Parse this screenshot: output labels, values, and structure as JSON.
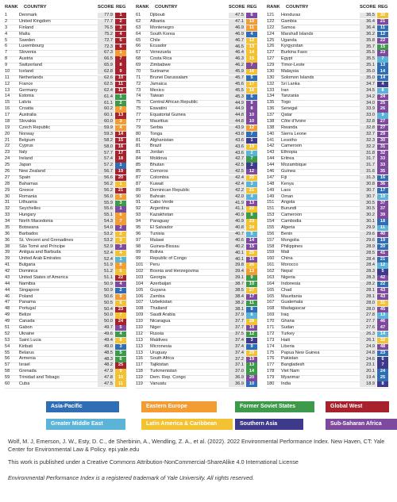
{
  "header": {
    "rank": "RANK",
    "country": "COUNTRY",
    "score": "SCORE",
    "reg": "REG"
  },
  "rows": [
    [
      1,
      "Denmark",
      "77.9",
      1,
      "#a8222e"
    ],
    [
      2,
      "United Kingdom",
      "77.7",
      2,
      "#a8222e"
    ],
    [
      3,
      "Finland",
      "76.5",
      3,
      "#a8222e"
    ],
    [
      4,
      "Malta",
      "75.2",
      4,
      "#a8222e"
    ],
    [
      5,
      "Sweden",
      "72.7",
      5,
      "#a8222e"
    ],
    [
      6,
      "Luxembourg",
      "72.3",
      6,
      "#a8222e"
    ],
    [
      7,
      "Slovenia",
      "67.3",
      1,
      "#f39c34"
    ],
    [
      8,
      "Austria",
      "66.5",
      7,
      "#a8222e"
    ],
    [
      9,
      "Switzerland",
      "65.9",
      8,
      "#a8222e"
    ],
    [
      10,
      "Iceland",
      "62.8",
      9,
      "#a8222e"
    ],
    [
      11,
      "Netherlands",
      "62.6",
      10,
      "#a8222e"
    ],
    [
      12,
      "France",
      "62.5",
      11,
      "#a8222e"
    ],
    [
      13,
      "Germany",
      "62.4",
      12,
      "#a8222e"
    ],
    [
      14,
      "Estonia",
      "61.4",
      1,
      "#3d9a4a"
    ],
    [
      15,
      "Latvia",
      "61.1",
      2,
      "#3d9a4a"
    ],
    [
      16,
      "Croatia",
      "60.2",
      2,
      "#f39c34"
    ],
    [
      17,
      "Australia",
      "60.1",
      13,
      "#a8222e"
    ],
    [
      18,
      "Slovakia",
      "60.0",
      3,
      "#f39c34"
    ],
    [
      19,
      "Czech Republic",
      "59.9",
      4,
      "#f39c34"
    ],
    [
      20,
      "Norway",
      "59.3",
      14,
      "#a8222e"
    ],
    [
      21,
      "Belgium",
      "58.2",
      15,
      "#a8222e"
    ],
    [
      22,
      "Cyprus",
      "58.0",
      16,
      "#a8222e"
    ],
    [
      23,
      "Italy",
      "57.7",
      17,
      "#a8222e"
    ],
    [
      24,
      "Ireland",
      "57.4",
      18,
      "#a8222e"
    ],
    [
      25,
      "Japan",
      "57.2",
      1,
      "#2f6eb5"
    ],
    [
      26,
      "New Zealand",
      "56.7",
      19,
      "#a8222e"
    ],
    [
      27,
      "Spain",
      "56.6",
      20,
      "#a8222e"
    ],
    [
      28,
      "Bahamas",
      "56.2",
      1,
      "#f2c232"
    ],
    [
      29,
      "Greece",
      "56.2",
      21,
      "#a8222e"
    ],
    [
      30,
      "Romania",
      "56.0",
      5,
      "#f39c34"
    ],
    [
      31,
      "Lithuania",
      "55.9",
      3,
      "#3d9a4a"
    ],
    [
      32,
      "Seychelles",
      "55.6",
      1,
      "#7e4a9e"
    ],
    [
      33,
      "Hungary",
      "55.1",
      6,
      "#f39c34"
    ],
    [
      34,
      "North Macedonia",
      "54.3",
      7,
      "#f39c34"
    ],
    [
      35,
      "Botswana",
      "54.0",
      2,
      "#7e4a9e"
    ],
    [
      36,
      "Barbados",
      "53.2",
      2,
      "#f2c232"
    ],
    [
      36,
      "St. Vincent and Grenadines",
      "53.2",
      3,
      "#f2c232"
    ],
    [
      38,
      "São Tomé and Príncipe",
      "52.9",
      3,
      "#7e4a9e"
    ],
    [
      39,
      "Antigua and Barbuda",
      "52.4",
      4,
      "#f2c232"
    ],
    [
      39,
      "United Arab Emirates",
      "52.4",
      1,
      "#5bb4d8"
    ],
    [
      41,
      "Bulgaria",
      "51.9",
      8,
      "#f39c34"
    ],
    [
      42,
      "Dominica",
      "51.2",
      5,
      "#f2c232"
    ],
    [
      43,
      "United States of America",
      "51.1",
      22,
      "#a8222e"
    ],
    [
      44,
      "Namibia",
      "50.9",
      4,
      "#7e4a9e"
    ],
    [
      44,
      "Singapore",
      "50.9",
      2,
      "#2f6eb5"
    ],
    [
      46,
      "Poland",
      "50.6",
      9,
      "#f39c34"
    ],
    [
      47,
      "Panama",
      "50.5",
      6,
      "#f2c232"
    ],
    [
      48,
      "Portugal",
      "50.4",
      23,
      "#a8222e"
    ],
    [
      49,
      "Belize",
      "50.0",
      7,
      "#f2c232"
    ],
    [
      49,
      "Canada",
      "50.0",
      24,
      "#a8222e"
    ],
    [
      51,
      "Gabon",
      "49.7",
      5,
      "#7e4a9e"
    ],
    [
      52,
      "Ukraine",
      "49.6",
      4,
      "#3d9a4a"
    ],
    [
      53,
      "Saint Lucia",
      "49.4",
      8,
      "#f2c232"
    ],
    [
      54,
      "Kiribati",
      "49.0",
      3,
      "#2f6eb5"
    ],
    [
      55,
      "Belarus",
      "48.5",
      5,
      "#3d9a4a"
    ],
    [
      56,
      "Armenia",
      "48.3",
      6,
      "#3d9a4a"
    ],
    [
      57,
      "Israel",
      "48.2",
      25,
      "#a8222e"
    ],
    [
      58,
      "Grenada",
      "47.9",
      9,
      "#f2c232"
    ],
    [
      59,
      "Trinidad and Tobago",
      "47.8",
      10,
      "#f2c232"
    ],
    [
      60,
      "Cuba",
      "47.5",
      11,
      "#f2c232"
    ],
    [
      61,
      "Djibouti",
      "47.5",
      6,
      "#7e4a9e"
    ],
    [
      62,
      "Albania",
      "47.1",
      10,
      "#f39c34"
    ],
    [
      63,
      "Montenegro",
      "46.9",
      11,
      "#f39c34"
    ],
    [
      64,
      "South Korea",
      "46.9",
      4,
      "#2f6eb5"
    ],
    [
      65,
      "Chile",
      "46.7",
      12,
      "#f2c232"
    ],
    [
      66,
      "Ecuador",
      "46.5",
      13,
      "#f2c232"
    ],
    [
      67,
      "Venezuela",
      "46.4",
      14,
      "#f2c232"
    ],
    [
      68,
      "Costa Rica",
      "46.3",
      15,
      "#f2c232"
    ],
    [
      69,
      "Zimbabwe",
      "46.2",
      7,
      "#7e4a9e"
    ],
    [
      70,
      "Suriname",
      "45.9",
      16,
      "#f2c232"
    ],
    [
      71,
      "Brunei Darussalam",
      "45.7",
      5,
      "#2f6eb5"
    ],
    [
      72,
      "Jamaica",
      "45.6",
      17,
      "#f2c232"
    ],
    [
      73,
      "Mexico",
      "45.5",
      18,
      "#f2c232"
    ],
    [
      74,
      "Taiwan",
      "45.3",
      6,
      "#2f6eb5"
    ],
    [
      75,
      "Central African Republic",
      "44.9",
      8,
      "#7e4a9e"
    ],
    [
      75,
      "Eswatini",
      "44.9",
      8,
      "#7e4a9e"
    ],
    [
      77,
      "Equatorial Guinea",
      "44.8",
      10,
      "#7e4a9e"
    ],
    [
      77,
      "Mauritius",
      "44.8",
      10,
      "#7e4a9e"
    ],
    [
      79,
      "Serbia",
      "43.9",
      12,
      "#f39c34"
    ],
    [
      80,
      "Tonga",
      "43.8",
      7,
      "#2f6eb5"
    ],
    [
      81,
      "Afghanistan",
      "43.6",
      1,
      "#3d3a8c"
    ],
    [
      81,
      "Brazil",
      "43.6",
      19,
      "#f2c232"
    ],
    [
      81,
      "Jordan",
      "43.6",
      2,
      "#5bb4d8"
    ],
    [
      84,
      "Moldova",
      "42.7",
      7,
      "#3d9a4a"
    ],
    [
      85,
      "Bhutan",
      "42.5",
      2,
      "#3d3a8c"
    ],
    [
      85,
      "Comoros",
      "42.5",
      12,
      "#7e4a9e"
    ],
    [
      87,
      "Colombia",
      "42.4",
      20,
      "#f2c232"
    ],
    [
      87,
      "Kuwait",
      "42.4",
      3,
      "#5bb4d8"
    ],
    [
      89,
      "Dominican Republic",
      "42.2",
      21,
      "#f2c232"
    ],
    [
      90,
      "Bahrain",
      "42.0",
      4,
      "#5bb4d8"
    ],
    [
      91,
      "Cabo Verde",
      "41.9",
      13,
      "#7e4a9e"
    ],
    [
      92,
      "Argentina",
      "41.1",
      22,
      "#f2c232"
    ],
    [
      93,
      "Kazakhstan",
      "40.9",
      8,
      "#3d9a4a"
    ],
    [
      94,
      "Paraguay",
      "40.9",
      23,
      "#f2c232"
    ],
    [
      95,
      "El Salvador",
      "40.8",
      24,
      "#f2c232"
    ],
    [
      96,
      "Tunisia",
      "40.7",
      5,
      "#5bb4d8"
    ],
    [
      97,
      "Malawi",
      "40.6",
      14,
      "#7e4a9e"
    ],
    [
      98,
      "Guinea-Bissau",
      "40.2",
      15,
      "#7e4a9e"
    ],
    [
      99,
      "Bolivia",
      "40.1",
      25,
      "#f2c232"
    ],
    [
      99,
      "Republic of Congo",
      "40.1",
      16,
      "#7e4a9e"
    ],
    [
      101,
      "Peru",
      "39.8",
      26,
      "#f2c232"
    ],
    [
      102,
      "Bosnia and Herzegovina",
      "39.4",
      13,
      "#f39c34"
    ],
    [
      103,
      "Georgia",
      "39.1",
      9,
      "#3d9a4a"
    ],
    [
      104,
      "Azerbaijan",
      "38.7",
      10,
      "#3d9a4a"
    ],
    [
      105,
      "Guyana",
      "38.5",
      27,
      "#f2c232"
    ],
    [
      106,
      "Zambia",
      "38.4",
      17,
      "#7e4a9e"
    ],
    [
      107,
      "Uzbekistan",
      "38.2",
      11,
      "#3d9a4a"
    ],
    [
      108,
      "Thailand",
      "38.1",
      8,
      "#2f6eb5"
    ],
    [
      109,
      "Saudi Arabia",
      "37.9",
      6,
      "#5bb4d8"
    ],
    [
      110,
      "Nicaragua",
      "37.7",
      28,
      "#f2c232"
    ],
    [
      110,
      "Niger",
      "37.7",
      18,
      "#7e4a9e"
    ],
    [
      112,
      "Russia",
      "37.5",
      12,
      "#3d9a4a"
    ],
    [
      113,
      "Maldives",
      "37.4",
      3,
      "#3d3a8c"
    ],
    [
      113,
      "Micronesia",
      "37.4",
      9,
      "#2f6eb5"
    ],
    [
      113,
      "Uruguay",
      "37.4",
      29,
      "#f2c232"
    ],
    [
      116,
      "South Africa",
      "37.2",
      19,
      "#7e4a9e"
    ],
    [
      117,
      "Tajikistan",
      "37.1",
      13,
      "#3d9a4a"
    ],
    [
      118,
      "Turkmenistan",
      "37.0",
      14,
      "#3d9a4a"
    ],
    [
      119,
      "Dem. Rep. Congo",
      "36.9",
      20,
      "#7e4a9e"
    ],
    [
      119,
      "Vanuatu",
      "36.9",
      10,
      "#2f6eb5"
    ],
    [
      121,
      "Honduras",
      "36.5",
      30,
      "#f2c232"
    ],
    [
      122,
      "Gambia",
      "36.4",
      21,
      "#7e4a9e"
    ],
    [
      122,
      "Samoa",
      "36.4",
      11,
      "#2f6eb5"
    ],
    [
      124,
      "Marshall Islands",
      "36.2",
      12,
      "#2f6eb5"
    ],
    [
      125,
      "Uganda",
      "35.8",
      22,
      "#7e4a9e"
    ],
    [
      126,
      "Kyrgyzstan",
      "35.7",
      15,
      "#3d9a4a"
    ],
    [
      127,
      "Burkina Faso",
      "35.5",
      23,
      "#7e4a9e"
    ],
    [
      127,
      "Egypt",
      "35.5",
      7,
      "#5bb4d8"
    ],
    [
      129,
      "Timor-Leste",
      "35.1",
      13,
      "#2f6eb5"
    ],
    [
      130,
      "Malaysia",
      "35.0",
      14,
      "#2f6eb5"
    ],
    [
      130,
      "Solomon Islands",
      "35.0",
      14,
      "#2f6eb5"
    ],
    [
      132,
      "Sri Lanka",
      "34.7",
      4,
      "#3d3a8c"
    ],
    [
      133,
      "Iran",
      "34.5",
      8,
      "#5bb4d8"
    ],
    [
      134,
      "Tanzania",
      "34.2",
      24,
      "#7e4a9e"
    ],
    [
      135,
      "Togo",
      "34.0",
      25,
      "#7e4a9e"
    ],
    [
      136,
      "Senegal",
      "33.9",
      26,
      "#7e4a9e"
    ],
    [
      137,
      "Qatar",
      "33.0",
      9,
      "#5bb4d8"
    ],
    [
      138,
      "Côte d'Ivoire",
      "32.8",
      27,
      "#7e4a9e"
    ],
    [
      138,
      "Rwanda",
      "32.8",
      27,
      "#7e4a9e"
    ],
    [
      140,
      "Sierra Leone",
      "32.7",
      29,
      "#7e4a9e"
    ],
    [
      141,
      "Lesotho",
      "32.3",
      30,
      "#7e4a9e"
    ],
    [
      142,
      "Cameroon",
      "32.2",
      31,
      "#7e4a9e"
    ],
    [
      143,
      "Ethiopia",
      "31.8",
      32,
      "#7e4a9e"
    ],
    [
      144,
      "Eritrea",
      "31.7",
      33,
      "#7e4a9e"
    ],
    [
      144,
      "Mozambique",
      "31.7",
      33,
      "#7e4a9e"
    ],
    [
      146,
      "Guinea",
      "31.6",
      35,
      "#7e4a9e"
    ],
    [
      147,
      "Fiji",
      "31.3",
      16,
      "#2f6eb5"
    ],
    [
      148,
      "Kenya",
      "30.8",
      36,
      "#7e4a9e"
    ],
    [
      149,
      "Laos",
      "30.7",
      17,
      "#2f6eb5"
    ],
    [
      149,
      "Oman",
      "30.7",
      10,
      "#5bb4d8"
    ],
    [
      151,
      "Angola",
      "30.5",
      37,
      "#7e4a9e"
    ],
    [
      151,
      "Burundi",
      "30.5",
      37,
      "#7e4a9e"
    ],
    [
      153,
      "Cameroon",
      "30.2",
      39,
      "#7e4a9e"
    ],
    [
      154,
      "Cambodia",
      "30.1",
      18,
      "#2f6eb5"
    ],
    [
      155,
      "Algeria",
      "29.9",
      11,
      "#5bb4d8"
    ],
    [
      156,
      "Benin",
      "29.6",
      40,
      "#7e4a9e"
    ],
    [
      157,
      "Mongolia",
      "29.6",
      19,
      "#2f6eb5"
    ],
    [
      158,
      "Philippines",
      "28.9",
      20,
      "#2f6eb5"
    ],
    [
      159,
      "Mali",
      "28.5",
      41,
      "#7e4a9e"
    ],
    [
      160,
      "China",
      "28.4",
      21,
      "#2f6eb5"
    ],
    [
      161,
      "Morocco",
      "28.4",
      12,
      "#5bb4d8"
    ],
    [
      162,
      "Nepal",
      "28.3",
      5,
      "#3d3a8c"
    ],
    [
      163,
      "Nigeria",
      "28.3",
      42,
      "#7e4a9e"
    ],
    [
      164,
      "Indonesia",
      "28.2",
      22,
      "#2f6eb5"
    ],
    [
      165,
      "Chad",
      "28.1",
      43,
      "#7e4a9e"
    ],
    [
      165,
      "Mauritania",
      "28.1",
      43,
      "#7e4a9e"
    ],
    [
      167,
      "Guatemala",
      "28.0",
      31,
      "#f2c232"
    ],
    [
      168,
      "Madagascar",
      "28.0",
      45,
      "#7e4a9e"
    ],
    [
      169,
      "Iraq",
      "27.8",
      13,
      "#5bb4d8"
    ],
    [
      170,
      "Ghana",
      "27.7",
      46,
      "#7e4a9e"
    ],
    [
      171,
      "Sudan",
      "27.6",
      47,
      "#7e4a9e"
    ],
    [
      172,
      "Turkey",
      "26.3",
      14,
      "#5bb4d8"
    ],
    [
      173,
      "Haiti",
      "26.1",
      32,
      "#f2c232"
    ],
    [
      174,
      "Liberia",
      "24.9",
      48,
      "#7e4a9e"
    ],
    [
      175,
      "Papua New Guinea",
      "24.8",
      23,
      "#2f6eb5"
    ],
    [
      176,
      "Pakistan",
      "24.6",
      6,
      "#3d3a8c"
    ],
    [
      177,
      "Bangladesh",
      "23.1",
      7,
      "#3d3a8c"
    ],
    [
      178,
      "Viet Nam",
      "20.1",
      24,
      "#2f6eb5"
    ],
    [
      179,
      "Myanmar",
      "19.4",
      25,
      "#2f6eb5"
    ],
    [
      180,
      "India",
      "18.9",
      8,
      "#3d3a8c"
    ]
  ],
  "legend": [
    {
      "label": "Asia-Pacific",
      "color": "#2f6eb5"
    },
    {
      "label": "Eastern Europe",
      "color": "#f39c34"
    },
    {
      "label": "Former Soviet States",
      "color": "#3d9a4a"
    },
    {
      "label": "Global West",
      "color": "#a8222e"
    },
    {
      "label": "Greater Middle East",
      "color": "#5bb4d8"
    },
    {
      "label": "Latin America & Caribbean",
      "color": "#f2c232"
    },
    {
      "label": "Southern Asia",
      "color": "#3d3a8c"
    },
    {
      "label": "Sub-Saharan Africa",
      "color": "#7e4a9e"
    }
  ],
  "footer": {
    "citation": "Wolf, M. J, Emerson, J. W., Esty, D. C., de Sherbinin, A., Wendling, Z. A., et al. (2022). 2022 Environmental Performance Index. New Haven, CT: Yale Center for Environmental Law & Policy. epi.yale.edu",
    "license": "This work is published under a Creative Commons Attribution-NonCommercial-ShareAlike 4.0 International License",
    "trademark": "Environmental Performance Index is a registered trademark of Yale University. All rights reserved."
  }
}
